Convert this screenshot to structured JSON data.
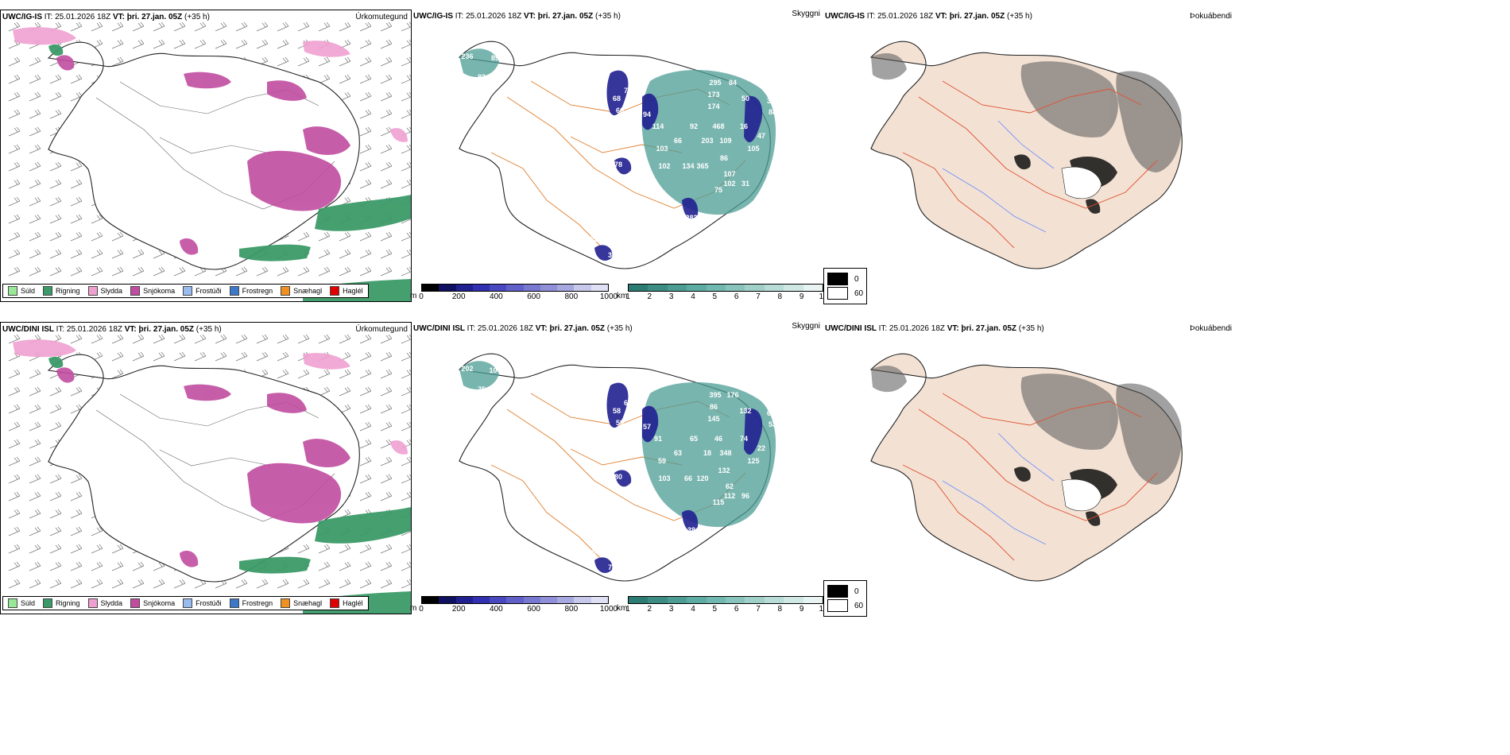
{
  "colors": {
    "precip_legend": [
      "#98e898",
      "#3c9a68",
      "#f0a0d0",
      "#c04ca0",
      "#98bcf0",
      "#3c78c8",
      "#f09020",
      "#e00000"
    ],
    "visibility_m": [
      "#000000",
      "#101060",
      "#202090",
      "#3030b0",
      "#4848c0",
      "#6060c8",
      "#7878d0",
      "#9090d8",
      "#a8a8e0",
      "#c8c8ec",
      "#e0e0f4"
    ],
    "visibility_km": [
      "#2c7c74",
      "#3c8c84",
      "#4c9c94",
      "#5cacA4",
      "#70b8b0",
      "#88c4bc",
      "#a0d0c8",
      "#b8dcd6",
      "#d0e8e4",
      "#e8f4f2"
    ],
    "fog_shades": [
      "#000000",
      "#ffffff"
    ]
  },
  "rows": [
    {
      "model_label": "UWC/IG-IS",
      "it_label": "IT: 25.01.2026 18Z",
      "vt_label": "VT: þri. 27.jan. 05Z",
      "offset": "(+35 h)",
      "left_title": "Úrkomutegund",
      "mid_title": "Skyggni",
      "right_title": "Þokuábendi",
      "visibility_labels": [
        "236",
        "89",
        "83",
        "68",
        "73",
        "66",
        "94",
        "114",
        "52",
        "189",
        "150",
        "295",
        "84",
        "173",
        "174",
        "50",
        "37",
        "88",
        "92",
        "468",
        "16",
        "66",
        "103",
        "203",
        "47",
        "109",
        "105",
        "86",
        "102",
        "134",
        "365",
        "107",
        "102",
        "31",
        "75",
        "78",
        "231",
        "36",
        "282",
        "120"
      ]
    },
    {
      "model_label": "UWC/DINI ISL",
      "it_label": "IT: 25.01.2026 18Z",
      "vt_label": "VT: þri. 27.jan. 05Z",
      "offset": "(+35 h)",
      "left_title": "Úrkomutegund",
      "mid_title": "Skyggni",
      "right_title": "Þokuábendi",
      "visibility_labels": [
        "202",
        "104",
        "75",
        "58",
        "60",
        "59",
        "57",
        "91",
        "103",
        "290",
        "175",
        "395",
        "176",
        "86",
        "145",
        "132",
        "63",
        "53",
        "65",
        "46",
        "74",
        "63",
        "59",
        "18",
        "22",
        "348",
        "125",
        "132",
        "103",
        "66",
        "120",
        "62",
        "112",
        "96",
        "115",
        "80",
        "69",
        "73",
        "38",
        "98"
      ]
    }
  ],
  "precip_legend": [
    "Súld",
    "Rigning",
    "Slydda",
    "Snjókoma",
    "Frostúði",
    "Frostregn",
    "Snæhagl",
    "Haglél"
  ],
  "visibility_m": {
    "unit": "m",
    "ticks": [
      "0",
      "200",
      "400",
      "600",
      "800",
      "1000"
    ]
  },
  "visibility_km": {
    "unit": "km",
    "ticks": [
      "1",
      "2",
      "3",
      "4",
      "5",
      "6",
      "7",
      "8",
      "9",
      "10"
    ]
  },
  "fog_legend": [
    "0",
    "60"
  ]
}
